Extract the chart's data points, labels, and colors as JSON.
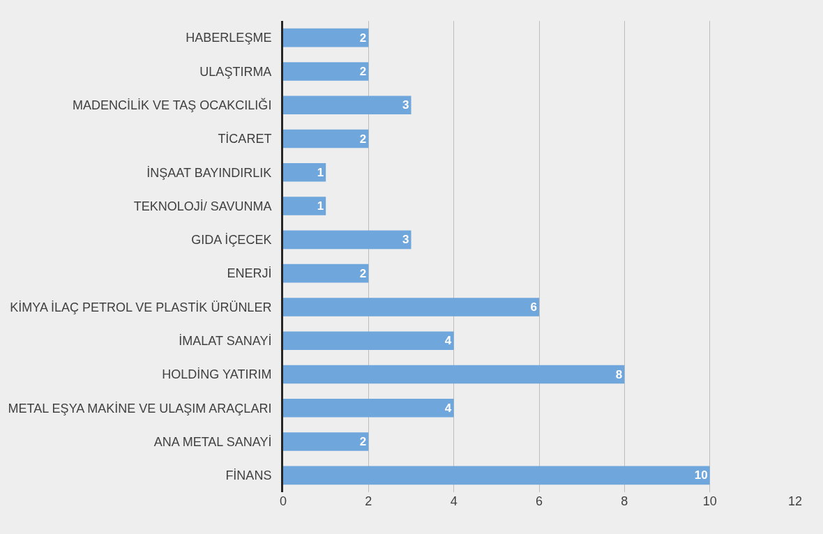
{
  "chart_data": {
    "type": "bar",
    "orientation": "horizontal",
    "categories": [
      "HABERLEŞME",
      "ULAŞTIRMA",
      "MADENCİLİK VE TAŞ OCAKCILIĞI",
      "TİCARET",
      "İNŞAAT BAYINDIRLIK",
      "TEKNOLOJİ/ SAVUNMA",
      "GIDA İÇECEK",
      "ENERJİ",
      "KİMYA İLAÇ PETROL VE PLASTİK ÜRÜNLER",
      "İMALAT SANAYİ",
      "HOLDİNG YATIRIM",
      "METAL EŞYA MAKİNE VE ULAŞIM ARAÇLARI",
      "ANA METAL SANAYİ",
      "FİNANS"
    ],
    "values": [
      2,
      2,
      3,
      2,
      1,
      1,
      3,
      2,
      6,
      4,
      8,
      4,
      2,
      10
    ],
    "color": "#6fa6dc",
    "xlim": [
      0,
      12
    ],
    "xticks": [
      0,
      2,
      4,
      6,
      8,
      10,
      12
    ],
    "grid": "x",
    "data_labels": true,
    "legend": false
  }
}
